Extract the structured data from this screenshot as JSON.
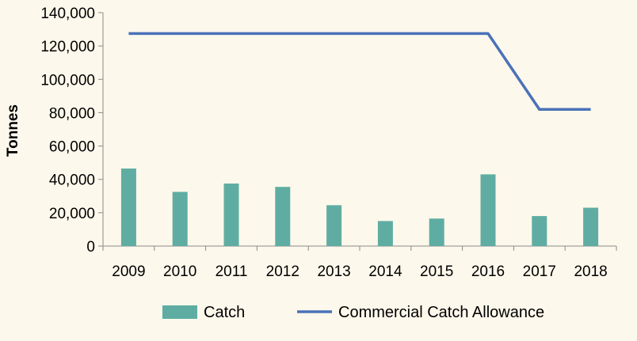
{
  "chart_data": {
    "type": "bar",
    "categories": [
      "2009",
      "2010",
      "2011",
      "2012",
      "2013",
      "2014",
      "2015",
      "2016",
      "2017",
      "2018"
    ],
    "series": [
      {
        "name": "Catch",
        "type": "bar",
        "color": "#5fada2",
        "values": [
          46500,
          32500,
          37500,
          35500,
          24500,
          15000,
          16500,
          43000,
          18000,
          23000
        ]
      },
      {
        "name": "Commercial Catch Allowance",
        "type": "line",
        "color": "#4a72b8",
        "values": [
          127500,
          127500,
          127500,
          127500,
          127500,
          127500,
          127500,
          127500,
          82000,
          82000
        ]
      }
    ],
    "title": "",
    "xlabel": "",
    "ylabel": "Tonnes",
    "ylim": [
      0,
      140000
    ],
    "yticks": [
      0,
      20000,
      40000,
      60000,
      80000,
      100000,
      120000,
      140000
    ],
    "ytick_labels": [
      "0",
      "20,000",
      "40,000",
      "60,000",
      "80,000",
      "100,000",
      "120,000",
      "140,000"
    ],
    "grid": false,
    "legend_position": "bottom"
  }
}
